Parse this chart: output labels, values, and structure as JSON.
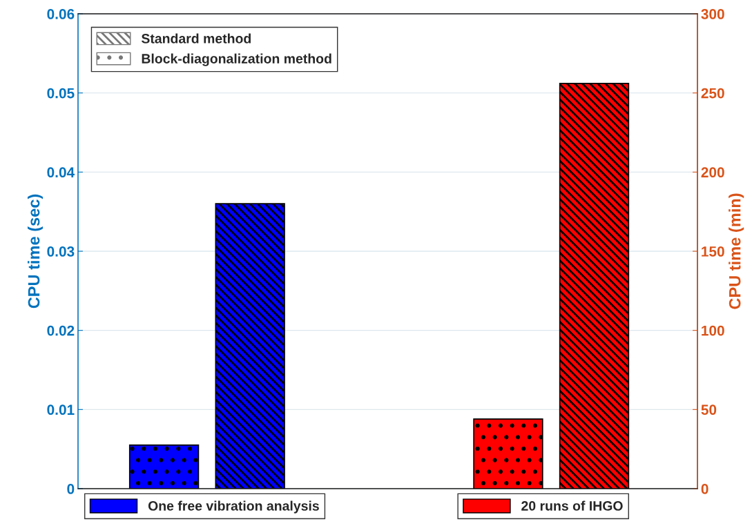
{
  "chart_data": {
    "type": "bar",
    "ylabel": "CPU time (sec)",
    "y2label": "CPU time (min)",
    "categories": [
      null,
      null,
      null,
      null
    ],
    "series": [
      {
        "name": "One free vibration analysis",
        "color": "#0000ff",
        "values": [
          0.0055,
          0.036,
          null,
          null
        ],
        "axis": "y"
      },
      {
        "name": "20 runs of IHGO",
        "color": "#ff0000",
        "values": [
          null,
          null,
          44,
          256
        ],
        "axis": "y2"
      }
    ],
    "ylim": [
      0,
      0.06
    ],
    "yticks": [
      0,
      0.01,
      0.02,
      0.03,
      0.04,
      0.05,
      0.06
    ],
    "y2lim": [
      0,
      300
    ],
    "y2ticks": [
      0,
      50,
      100,
      150,
      200,
      250,
      300
    ],
    "annotations": [
      "Standard method",
      "Block-diagonalization method"
    ],
    "grid": "y",
    "legend": "bottom"
  }
}
